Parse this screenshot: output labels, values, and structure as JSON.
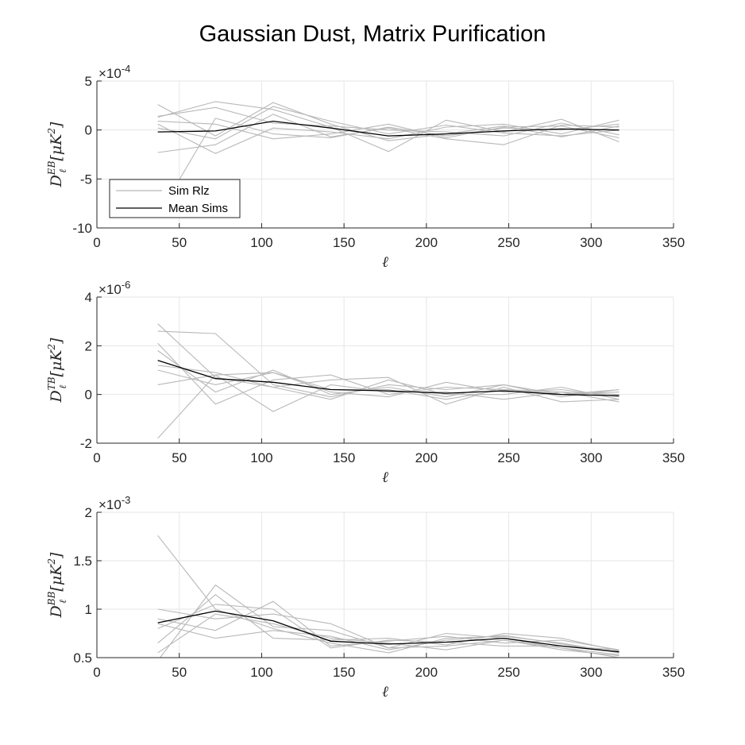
{
  "figure_title": "Gaussian Dust, Matrix Purification",
  "colors": {
    "realization": "#b8b8b8",
    "mean": "#000000",
    "grid": "#e6e6e6",
    "axis": "#262626"
  },
  "legend": {
    "entries": [
      "Sim Rlz",
      "Mean Sims"
    ],
    "placement": "bottom-left (top panel only)"
  },
  "chart_data": [
    {
      "type": "line",
      "title": "",
      "xlabel": "ℓ",
      "ylabel": "D_ℓ^{EB} [μK²]",
      "exponent_label": "×10^-4",
      "xlim": [
        0,
        350
      ],
      "ylim": [
        -10,
        5
      ],
      "xticks": [
        0,
        50,
        100,
        150,
        200,
        250,
        300,
        350
      ],
      "yticks": [
        -10,
        -5,
        0,
        5
      ],
      "grid": true,
      "x": [
        37,
        72,
        107,
        142,
        177,
        212,
        247,
        282,
        317
      ],
      "series": [
        {
          "name": "Mean Sims",
          "values": [
            -0.2,
            -0.1,
            0.9,
            0.2,
            -0.6,
            -0.4,
            -0.1,
            0.1,
            0.0
          ]
        },
        {
          "name": "Sim Rlz",
          "values": [
            2.6,
            -0.6,
            2.8,
            0.6,
            -1.1,
            -0.4,
            0.4,
            -0.7,
            0.4
          ]
        },
        {
          "name": "Sim Rlz",
          "values": [
            1.3,
            2.9,
            2.1,
            0.3,
            -2.2,
            1.0,
            -0.2,
            1.1,
            -1.2
          ]
        },
        {
          "name": "Sim Rlz",
          "values": [
            -2.3,
            -1.5,
            1.6,
            -0.7,
            0.2,
            -0.9,
            -1.5,
            0.5,
            0.3
          ]
        },
        {
          "name": "Sim Rlz",
          "values": [
            0.6,
            -2.4,
            0.2,
            -0.2,
            -0.9,
            0.3,
            0.6,
            -0.4,
            1.0
          ]
        },
        {
          "name": "Sim Rlz",
          "values": [
            1.4,
            2.3,
            0.7,
            0.4,
            0.0,
            -0.2,
            -0.6,
            0.7,
            -0.5
          ]
        },
        {
          "name": "Sim Rlz",
          "values": [
            -8.8,
            1.2,
            -0.4,
            -0.8,
            0.3,
            -0.6,
            0.2,
            0.0,
            0.6
          ]
        },
        {
          "name": "Sim Rlz",
          "values": [
            0.2,
            -0.9,
            2.4,
            0.9,
            -0.4,
            0.5,
            -0.3,
            -0.6,
            0.0
          ]
        },
        {
          "name": "Sim Rlz",
          "values": [
            0.9,
            0.6,
            -0.9,
            -0.4,
            0.6,
            -0.8,
            0.3,
            0.4,
            -0.8
          ]
        }
      ]
    },
    {
      "type": "line",
      "title": "",
      "xlabel": "ℓ",
      "ylabel": "D_ℓ^{TB} [μK²]",
      "exponent_label": "×10^-6",
      "xlim": [
        0,
        350
      ],
      "ylim": [
        -2,
        4
      ],
      "xticks": [
        0,
        50,
        100,
        150,
        200,
        250,
        300,
        350
      ],
      "yticks": [
        -2,
        0,
        2,
        4
      ],
      "grid": true,
      "x": [
        37,
        72,
        107,
        142,
        177,
        212,
        247,
        282,
        317
      ],
      "series": [
        {
          "name": "Mean Sims",
          "values": [
            1.4,
            0.65,
            0.5,
            0.2,
            0.15,
            0.05,
            0.15,
            0.0,
            -0.05
          ]
        },
        {
          "name": "Sim Rlz",
          "values": [
            2.9,
            0.7,
            0.3,
            0.6,
            0.7,
            -0.4,
            0.3,
            -0.3,
            -0.2
          ]
        },
        {
          "name": "Sim Rlz",
          "values": [
            2.6,
            2.5,
            0.4,
            -0.1,
            0.4,
            0.2,
            0.4,
            0.0,
            0.2
          ]
        },
        {
          "name": "Sim Rlz",
          "values": [
            -1.8,
            0.8,
            0.9,
            0.1,
            -0.1,
            0.5,
            0.1,
            0.2,
            -0.1
          ]
        },
        {
          "name": "Sim Rlz",
          "values": [
            2.1,
            -0.4,
            0.6,
            0.8,
            0.0,
            0.3,
            0.2,
            0.0,
            0.1
          ]
        },
        {
          "name": "Sim Rlz",
          "values": [
            1.0,
            0.4,
            0.9,
            0.2,
            0.2,
            -0.2,
            0.2,
            0.1,
            -0.3
          ]
        },
        {
          "name": "Sim Rlz",
          "values": [
            0.4,
            0.8,
            -0.7,
            0.4,
            0.1,
            0.1,
            -0.2,
            0.1,
            0.0
          ]
        },
        {
          "name": "Sim Rlz",
          "values": [
            1.8,
            0.1,
            1.0,
            0.0,
            0.3,
            -0.1,
            0.4,
            -0.1,
            0.2
          ]
        },
        {
          "name": "Sim Rlz",
          "values": [
            1.2,
            0.9,
            0.3,
            -0.2,
            0.6,
            0.0,
            0.0,
            0.3,
            -0.2
          ]
        }
      ]
    },
    {
      "type": "line",
      "title": "",
      "xlabel": "ℓ",
      "ylabel": "D_ℓ^{BB} [μK²]",
      "exponent_label": "×10^-3",
      "xlim": [
        0,
        350
      ],
      "ylim": [
        0.5,
        2
      ],
      "xticks": [
        0,
        50,
        100,
        150,
        200,
        250,
        300,
        350
      ],
      "yticks": [
        0.5,
        1,
        1.5,
        2
      ],
      "grid": true,
      "x": [
        37,
        72,
        107,
        142,
        177,
        212,
        247,
        282,
        317
      ],
      "series": [
        {
          "name": "Mean Sims",
          "values": [
            0.86,
            0.98,
            0.88,
            0.67,
            0.64,
            0.66,
            0.7,
            0.62,
            0.56
          ]
        },
        {
          "name": "Sim Rlz",
          "values": [
            1.76,
            1.0,
            0.8,
            0.65,
            0.55,
            0.7,
            0.72,
            0.65,
            0.55
          ]
        },
        {
          "name": "Sim Rlz",
          "values": [
            0.47,
            1.25,
            0.82,
            0.78,
            0.6,
            0.62,
            0.68,
            0.58,
            0.52
          ]
        },
        {
          "name": "Sim Rlz",
          "values": [
            0.9,
            0.78,
            1.08,
            0.62,
            0.67,
            0.72,
            0.65,
            0.68,
            0.58
          ]
        },
        {
          "name": "Sim Rlz",
          "values": [
            1.0,
            0.9,
            0.95,
            0.85,
            0.6,
            0.75,
            0.7,
            0.6,
            0.5
          ]
        },
        {
          "name": "Sim Rlz",
          "values": [
            0.65,
            1.15,
            0.7,
            0.68,
            0.7,
            0.63,
            0.75,
            0.7,
            0.57
          ]
        },
        {
          "name": "Sim Rlz",
          "values": [
            0.8,
            1.05,
            1.0,
            0.6,
            0.68,
            0.66,
            0.62,
            0.62,
            0.58
          ]
        },
        {
          "name": "Sim Rlz",
          "values": [
            0.85,
            0.7,
            0.78,
            0.72,
            0.58,
            0.68,
            0.73,
            0.64,
            0.55
          ]
        },
        {
          "name": "Sim Rlz",
          "values": [
            0.55,
            0.95,
            0.85,
            0.7,
            0.65,
            0.58,
            0.68,
            0.6,
            0.53
          ]
        }
      ]
    }
  ]
}
